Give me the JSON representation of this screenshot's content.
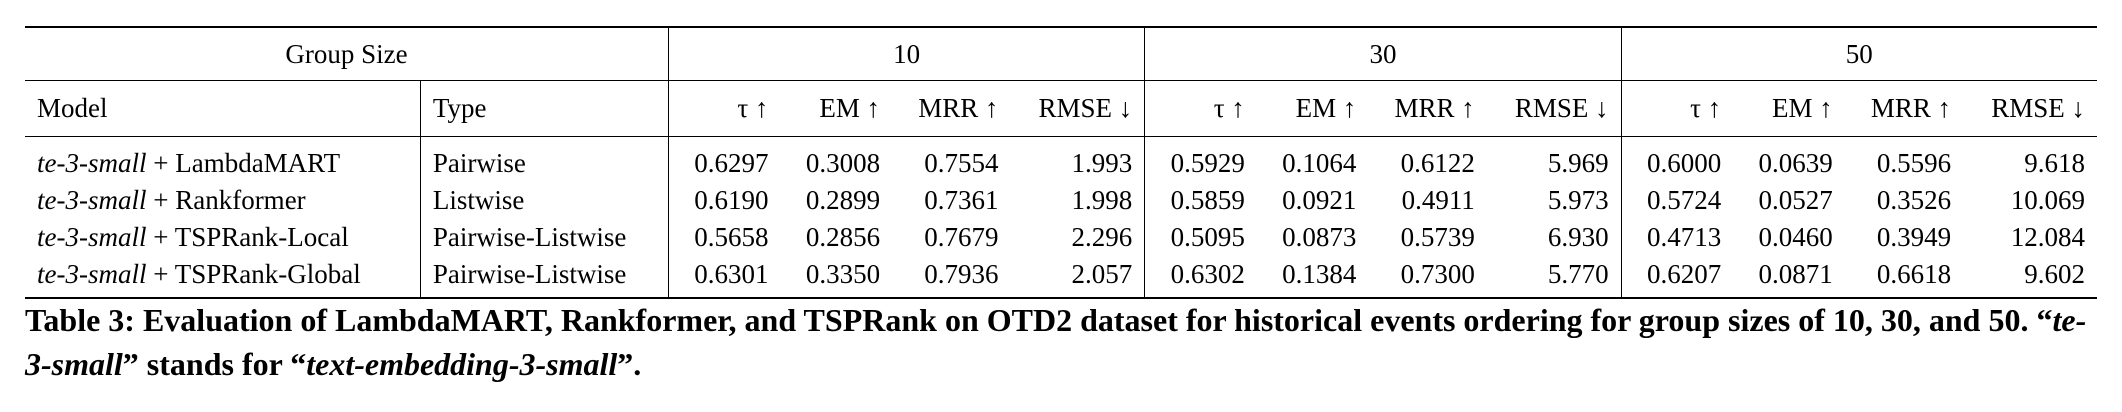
{
  "table": {
    "group_size_label": "Group Size",
    "group_sizes": [
      "10",
      "30",
      "50"
    ],
    "model_header": "Model",
    "type_header": "Type",
    "metric_headers": [
      "τ ↑",
      "EM ↑",
      "MRR ↑",
      "RMSE ↓"
    ],
    "rows": [
      {
        "embedding": "te-3-small",
        "model_suffix": " + LambdaMART",
        "type": "Pairwise",
        "values": [
          "0.6297",
          "0.3008",
          "0.7554",
          "1.993",
          "0.5929",
          "0.1064",
          "0.6122",
          "5.969",
          "0.6000",
          "0.0639",
          "0.5596",
          "9.618"
        ],
        "bold": [
          false,
          false,
          false,
          true,
          false,
          false,
          false,
          false,
          false,
          false,
          false,
          false
        ]
      },
      {
        "embedding": "te-3-small",
        "model_suffix": " + Rankformer",
        "type": "Listwise",
        "values": [
          "0.6190",
          "0.2899",
          "0.7361",
          "1.998",
          "0.5859",
          "0.0921",
          "0.4911",
          "5.973",
          "0.5724",
          "0.0527",
          "0.3526",
          "10.069"
        ],
        "bold": [
          false,
          false,
          false,
          false,
          false,
          false,
          false,
          false,
          false,
          false,
          false,
          false
        ]
      },
      {
        "embedding": "te-3-small",
        "model_suffix": " + TSPRank-Local",
        "type": "Pairwise-Listwise",
        "values": [
          "0.5658",
          "0.2856",
          "0.7679",
          "2.296",
          "0.5095",
          "0.0873",
          "0.5739",
          "6.930",
          "0.4713",
          "0.0460",
          "0.3949",
          "12.084"
        ],
        "bold": [
          false,
          false,
          false,
          false,
          false,
          false,
          false,
          false,
          false,
          false,
          false,
          false
        ]
      },
      {
        "embedding": "te-3-small",
        "model_suffix": " + TSPRank-Global",
        "type": "Pairwise-Listwise",
        "values": [
          "0.6301",
          "0.3350",
          "0.7936",
          "2.057",
          "0.6302",
          "0.1384",
          "0.7300",
          "5.770",
          "0.6207",
          "0.0871",
          "0.6618",
          "9.602"
        ],
        "bold": [
          true,
          true,
          true,
          false,
          true,
          true,
          true,
          true,
          true,
          true,
          true,
          true
        ]
      }
    ]
  },
  "caption": {
    "part1": "Table 3: Evaluation of LambdaMART, Rankformer, and TSPRank on OTD2 dataset for historical events ordering for group sizes of 10, 30, and 50. “",
    "abbrev": "te-3-small",
    "part2": "” stands for “",
    "full_name": "text-embedding-3-small",
    "part3": "”."
  }
}
